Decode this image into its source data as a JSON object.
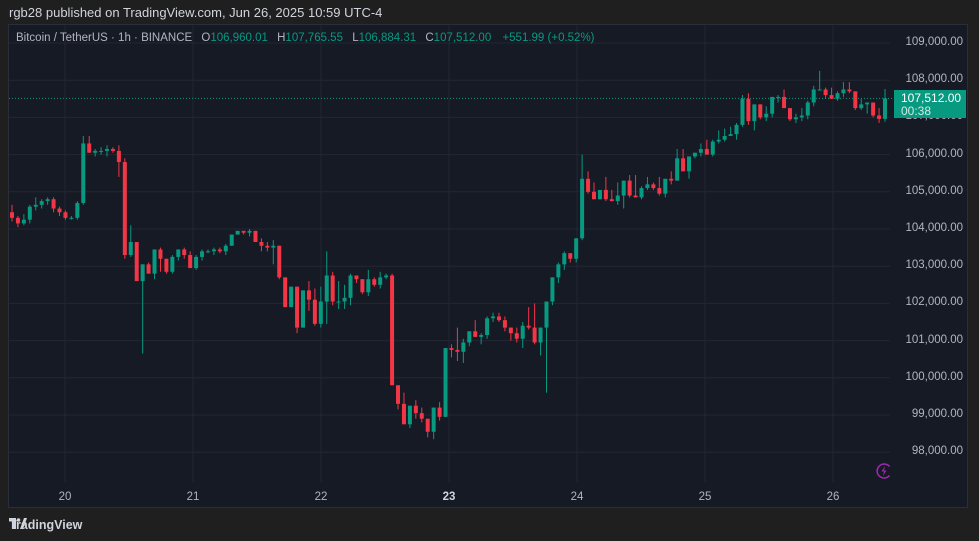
{
  "header": {
    "published": "rgb28 published on TradingView.com, Jun 26, 2025 10:59 UTC-4"
  },
  "legend": {
    "symbol": "Bitcoin / TetherUS · 1h · BINANCE",
    "o_label": "O",
    "o": "106,960.01",
    "h_label": "H",
    "h": "107,765.55",
    "l_label": "L",
    "l": "106,884.31",
    "c_label": "C",
    "c": "107,512.00",
    "change": "+551.99 (+0.52%)"
  },
  "price_tag": {
    "price": "107,512.00",
    "countdown": "00:38"
  },
  "footer": {
    "brand": "TradingView"
  },
  "colors": {
    "up": "#089981",
    "down": "#f23645",
    "bg": "#161a25",
    "grid": "#232733",
    "accent_icon": "#9c27b0"
  },
  "chart_data": {
    "type": "candlestick",
    "title": "Bitcoin / TetherUS · 1h · BINANCE",
    "xlabel": "",
    "ylabel": "",
    "ylim": [
      97500,
      109500
    ],
    "y_ticks": [
      "109,000.00",
      "108,000.00",
      "107,000.00",
      "106,000.00",
      "105,000.00",
      "104,000.00",
      "103,000.00",
      "102,000.00",
      "101,000.00",
      "100,000.00",
      "99,000.00",
      "98,000.00"
    ],
    "y_tick_values": [
      109000,
      108000,
      107000,
      106000,
      105000,
      104000,
      103000,
      102000,
      101000,
      100000,
      99000,
      98000
    ],
    "x_ticks": [
      "20",
      "21",
      "22",
      "23",
      "24",
      "25",
      "26"
    ],
    "x_tick_bold": "23",
    "last_price": 107512.0,
    "grid": true,
    "candles_ohlc": [
      [
        104450,
        104650,
        104200,
        104300
      ],
      [
        104300,
        104350,
        104050,
        104150
      ],
      [
        104150,
        104400,
        104100,
        104250
      ],
      [
        104250,
        104650,
        104150,
        104600
      ],
      [
        104600,
        104850,
        104500,
        104650
      ],
      [
        104650,
        104800,
        104550,
        104750
      ],
      [
        104750,
        104850,
        104650,
        104800
      ],
      [
        104800,
        104850,
        104450,
        104550
      ],
      [
        104550,
        104600,
        104350,
        104450
      ],
      [
        104450,
        104500,
        104250,
        104300
      ],
      [
        104300,
        104350,
        104250,
        104300
      ],
      [
        104300,
        104750,
        104250,
        104700
      ],
      [
        104700,
        106500,
        104650,
        106300
      ],
      [
        106300,
        106500,
        106100,
        106050
      ],
      [
        106050,
        106150,
        105950,
        106100
      ],
      [
        106100,
        106200,
        106000,
        106100
      ],
      [
        106100,
        106250,
        105950,
        106150
      ],
      [
        106150,
        106200,
        106050,
        106100
      ],
      [
        106100,
        106250,
        105400,
        105800
      ],
      [
        105800,
        105900,
        103200,
        103300
      ],
      [
        103300,
        104100,
        103250,
        103650
      ],
      [
        103650,
        103600,
        102700,
        102600
      ],
      [
        102600,
        102400,
        100650,
        103050
      ],
      [
        103050,
        103100,
        102900,
        102800
      ],
      [
        102800,
        103450,
        102650,
        103450
      ],
      [
        103450,
        103500,
        102850,
        103200
      ],
      [
        103200,
        103050,
        102800,
        102850
      ],
      [
        102850,
        103300,
        102800,
        103250
      ],
      [
        103250,
        103400,
        103150,
        103450
      ],
      [
        103450,
        103500,
        103200,
        103300
      ],
      [
        103300,
        103400,
        103000,
        102950
      ],
      [
        102950,
        103300,
        102900,
        103250
      ],
      [
        103250,
        103450,
        103150,
        103400
      ],
      [
        103400,
        103450,
        103350,
        103400
      ],
      [
        103400,
        103500,
        103300,
        103450
      ],
      [
        103450,
        103500,
        103350,
        103400
      ],
      [
        103400,
        103600,
        103300,
        103550
      ],
      [
        103550,
        103850,
        103550,
        103850
      ],
      [
        103850,
        103900,
        103850,
        103950
      ],
      [
        103950,
        103950,
        103850,
        103900
      ],
      [
        103900,
        104000,
        103800,
        103950
      ],
      [
        103950,
        103900,
        103650,
        103650
      ],
      [
        103650,
        103750,
        103400,
        103550
      ],
      [
        103550,
        103650,
        103400,
        103500
      ],
      [
        103500,
        103700,
        103050,
        103550
      ],
      [
        103550,
        103400,
        102650,
        102700
      ],
      [
        102700,
        102450,
        101950,
        101900
      ],
      [
        101900,
        102400,
        101900,
        102450
      ],
      [
        102450,
        102450,
        101200,
        101350
      ],
      [
        101350,
        102300,
        101350,
        102350
      ],
      [
        102350,
        102600,
        101800,
        102100
      ],
      [
        102100,
        102400,
        101400,
        101450
      ],
      [
        101450,
        102450,
        101350,
        102050
      ],
      [
        102050,
        103400,
        101450,
        102750
      ],
      [
        102750,
        102850,
        101950,
        102050
      ],
      [
        102050,
        102600,
        101850,
        102050
      ],
      [
        102050,
        102500,
        101850,
        102150
      ],
      [
        102150,
        102800,
        101950,
        102750
      ],
      [
        102750,
        102750,
        102550,
        102650
      ],
      [
        102650,
        102650,
        102250,
        102300
      ],
      [
        102300,
        102900,
        102200,
        102650
      ],
      [
        102650,
        102700,
        102450,
        102500
      ],
      [
        102500,
        102850,
        102400,
        102700
      ],
      [
        102700,
        102800,
        102650,
        102750
      ],
      [
        102750,
        102800,
        100700,
        99800
      ],
      [
        99800,
        99750,
        99150,
        99300
      ],
      [
        99300,
        99600,
        98950,
        98750
      ],
      [
        98750,
        99150,
        98650,
        99250
      ],
      [
        99250,
        99400,
        98900,
        99050
      ],
      [
        99050,
        99200,
        98800,
        98900
      ],
      [
        98900,
        98850,
        98400,
        98550
      ],
      [
        98550,
        99100,
        98350,
        99200
      ],
      [
        99200,
        99350,
        98850,
        98950
      ],
      [
        98950,
        99600,
        99450,
        100800
      ],
      [
        100800,
        100900,
        100550,
        100750
      ],
      [
        100750,
        101350,
        100450,
        100700
      ],
      [
        100700,
        101050,
        100400,
        100950
      ],
      [
        100950,
        101250,
        100850,
        101250
      ],
      [
        101250,
        101550,
        101150,
        101100
      ],
      [
        101100,
        101200,
        100900,
        101150
      ],
      [
        101150,
        101650,
        101050,
        101600
      ],
      [
        101600,
        101750,
        101500,
        101650
      ],
      [
        101650,
        101750,
        101500,
        101550
      ],
      [
        101550,
        101650,
        101250,
        101350
      ],
      [
        101350,
        101350,
        101000,
        101200
      ],
      [
        101200,
        101350,
        100950,
        101050
      ],
      [
        101050,
        101500,
        100800,
        101400
      ],
      [
        101400,
        101900,
        101300,
        101350
      ],
      [
        101350,
        102000,
        100900,
        100950
      ],
      [
        100950,
        101250,
        100600,
        101350
      ],
      [
        101350,
        101400,
        99600,
        102050
      ],
      [
        102050,
        102700,
        101950,
        102700
      ],
      [
        102700,
        103100,
        102550,
        103050
      ],
      [
        103050,
        103400,
        102900,
        103350
      ],
      [
        103350,
        103300,
        103100,
        103200
      ],
      [
        103200,
        103750,
        103100,
        103750
      ],
      [
        103750,
        106000,
        103700,
        105350
      ],
      [
        105350,
        105550,
        104950,
        105000
      ],
      [
        105000,
        105250,
        104800,
        104800
      ],
      [
        104800,
        105050,
        104800,
        105050
      ],
      [
        105050,
        105400,
        104750,
        104800
      ],
      [
        104800,
        105050,
        104750,
        104750
      ],
      [
        104750,
        105250,
        104650,
        104900
      ],
      [
        104900,
        105150,
        104550,
        105300
      ],
      [
        105300,
        105450,
        104850,
        104900
      ],
      [
        104900,
        105450,
        104950,
        104850
      ],
      [
        104850,
        105150,
        104800,
        105100
      ],
      [
        105100,
        105400,
        105050,
        105200
      ],
      [
        105200,
        105250,
        105050,
        105100
      ],
      [
        105100,
        105400,
        104900,
        104950
      ],
      [
        104950,
        105200,
        104850,
        105350
      ],
      [
        105350,
        105550,
        105200,
        105300
      ],
      [
        105300,
        106150,
        105300,
        105900
      ],
      [
        105900,
        106150,
        105650,
        105550
      ],
      [
        105550,
        105800,
        105350,
        105950
      ],
      [
        105950,
        106050,
        105900,
        106050
      ],
      [
        106050,
        106300,
        105950,
        106150
      ],
      [
        106150,
        106400,
        106050,
        106000
      ],
      [
        106000,
        106400,
        105950,
        106350
      ],
      [
        106350,
        106650,
        106300,
        106400
      ],
      [
        106400,
        106700,
        106350,
        106500
      ],
      [
        106500,
        106750,
        106500,
        106550
      ],
      [
        106550,
        106850,
        106400,
        106800
      ],
      [
        106800,
        107600,
        106750,
        107500
      ],
      [
        107500,
        107650,
        106800,
        106900
      ],
      [
        106900,
        107200,
        106650,
        107350
      ],
      [
        107350,
        107250,
        106950,
        107000
      ],
      [
        107000,
        107300,
        106900,
        107100
      ],
      [
        107100,
        107550,
        107000,
        107550
      ],
      [
        107550,
        107600,
        107400,
        107550
      ],
      [
        107550,
        107750,
        107400,
        107250
      ],
      [
        107250,
        107200,
        106900,
        106950
      ],
      [
        106950,
        107100,
        106850,
        107000
      ],
      [
        107000,
        107250,
        106900,
        107050
      ],
      [
        107050,
        107450,
        106950,
        107400
      ],
      [
        107400,
        107850,
        107300,
        107750
      ],
      [
        107750,
        108250,
        107750,
        107750
      ],
      [
        107750,
        107800,
        107500,
        107600
      ],
      [
        107600,
        107800,
        107500,
        107500
      ],
      [
        107500,
        107700,
        107450,
        107650
      ],
      [
        107650,
        107950,
        107550,
        107750
      ],
      [
        107750,
        107950,
        107650,
        107700
      ],
      [
        107700,
        107700,
        107200,
        107250
      ],
      [
        107250,
        107500,
        107200,
        107350
      ],
      [
        107350,
        107400,
        107100,
        107400
      ],
      [
        107400,
        107350,
        107000,
        107050
      ],
      [
        107050,
        107250,
        106850,
        106960
      ],
      [
        106960,
        107765,
        106884,
        107512
      ]
    ]
  }
}
